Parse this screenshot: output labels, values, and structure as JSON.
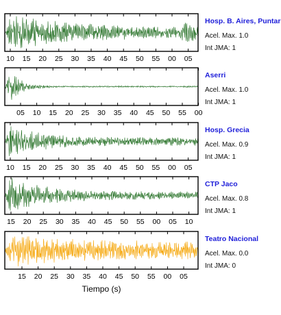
{
  "chart_data": {
    "type": "line",
    "xlabel": "Tiempo (s)",
    "panels": [
      {
        "station": "Hosp. B. Aires, Puntare",
        "max_accel_text": "Acel. Max. 1.0",
        "jma_text": "Int JMA: 1",
        "color": "#1d6b1d",
        "tick_labels": [
          "10",
          "15",
          "20",
          "25",
          "30",
          "35",
          "40",
          "45",
          "50",
          "55",
          "00",
          "05"
        ],
        "envelope": {
          "peak": 1.0,
          "decay": 1.2,
          "floor": 0.28,
          "late_burst": 0.25
        }
      },
      {
        "station": "Aserri",
        "max_accel_text": "Acel. Max. 1.0",
        "jma_text": "Int JMA: 1",
        "color": "#1d6b1d",
        "tick_labels": [
          "05",
          "10",
          "15",
          "20",
          "25",
          "30",
          "35",
          "40",
          "45",
          "50",
          "55",
          "00"
        ],
        "envelope": {
          "peak": 1.0,
          "decay": 6.0,
          "floor": 0.04,
          "late_burst": 0.0
        }
      },
      {
        "station": "Hosp. Grecia",
        "max_accel_text": "Acel. Max. 0.9",
        "jma_text": "Int JMA: 1",
        "color": "#1d6b1d",
        "tick_labels": [
          "10",
          "15",
          "20",
          "25",
          "30",
          "35",
          "40",
          "45",
          "50",
          "55",
          "00",
          "05"
        ],
        "envelope": {
          "peak": 0.95,
          "decay": 2.4,
          "floor": 0.22,
          "late_burst": 0.0
        }
      },
      {
        "station": "CTP Jaco",
        "max_accel_text": "Acel. Max. 0.8",
        "jma_text": "Int JMA: 1",
        "color": "#1d6b1d",
        "tick_labels": [
          "15",
          "20",
          "25",
          "30",
          "35",
          "40",
          "45",
          "50",
          "55",
          "00",
          "05",
          "10"
        ],
        "envelope": {
          "peak": 0.95,
          "decay": 1.8,
          "floor": 0.2,
          "late_burst": 0.0
        }
      },
      {
        "station": "Teatro Nacional",
        "max_accel_text": "Acel. Max. 0.0",
        "jma_text": "Int JMA: 0",
        "color": "#f5a300",
        "tick_labels": [
          "15",
          "20",
          "25",
          "30",
          "35",
          "40",
          "45",
          "50",
          "55",
          "00",
          "05"
        ],
        "envelope": {
          "peak": 1.0,
          "decay": 1.3,
          "floor": 0.45,
          "late_burst": 0.0
        }
      }
    ]
  }
}
